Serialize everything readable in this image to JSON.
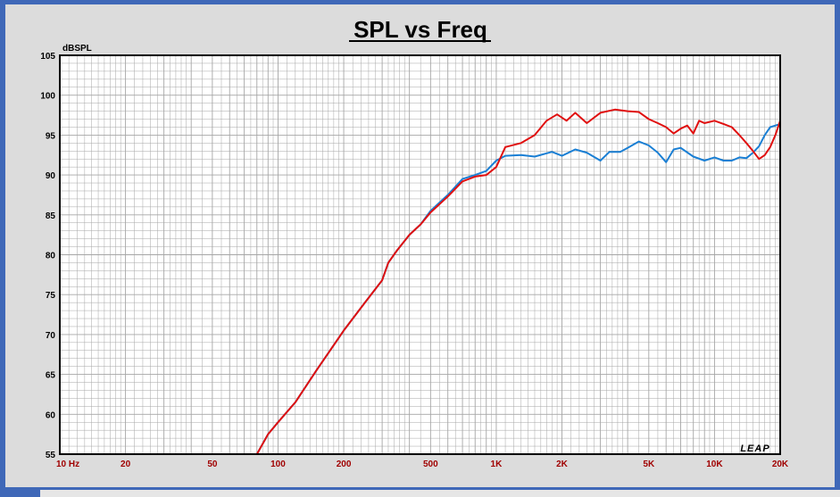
{
  "chart_data": {
    "type": "line",
    "title": "SPL vs Freq",
    "ylabel": "dBSPL",
    "xlabel": "",
    "x_scale": "log",
    "xlim": [
      10,
      20000
    ],
    "ylim": [
      55,
      105
    ],
    "grid": true,
    "brand": "LEAP",
    "x_ticks": [
      {
        "value": 10,
        "label": "10  Hz"
      },
      {
        "value": 20,
        "label": "20"
      },
      {
        "value": 50,
        "label": "50"
      },
      {
        "value": 100,
        "label": "100"
      },
      {
        "value": 200,
        "label": "200"
      },
      {
        "value": 500,
        "label": "500"
      },
      {
        "value": 1000,
        "label": "1K"
      },
      {
        "value": 2000,
        "label": "2K"
      },
      {
        "value": 5000,
        "label": "5K"
      },
      {
        "value": 10000,
        "label": "10K"
      },
      {
        "value": 20000,
        "label": "20K"
      }
    ],
    "y_ticks": [
      55,
      60,
      65,
      70,
      75,
      80,
      85,
      90,
      95,
      100,
      105
    ],
    "colors": {
      "tick_x": "#a00000",
      "tick_y": "#000000",
      "grid": "#a6a6a6",
      "plot_bg": "#ffffff"
    },
    "series": [
      {
        "color": "#1a7fd4",
        "points": [
          [
            10,
            55
          ],
          [
            80,
            55
          ],
          [
            90,
            57.5
          ],
          [
            100,
            59
          ],
          [
            120,
            61.5
          ],
          [
            150,
            65.5
          ],
          [
            200,
            70.5
          ],
          [
            250,
            74
          ],
          [
            300,
            76.8
          ],
          [
            320,
            79
          ],
          [
            350,
            80.5
          ],
          [
            400,
            82.5
          ],
          [
            450,
            83.8
          ],
          [
            500,
            85.5
          ],
          [
            600,
            87.5
          ],
          [
            700,
            89.5
          ],
          [
            800,
            90
          ],
          [
            900,
            90.5
          ],
          [
            1000,
            91.8
          ],
          [
            1100,
            92.4
          ],
          [
            1300,
            92.5
          ],
          [
            1500,
            92.3
          ],
          [
            1800,
            92.9
          ],
          [
            2000,
            92.4
          ],
          [
            2300,
            93.2
          ],
          [
            2600,
            92.8
          ],
          [
            3000,
            91.8
          ],
          [
            3300,
            92.9
          ],
          [
            3700,
            92.9
          ],
          [
            4000,
            93.4
          ],
          [
            4500,
            94.2
          ],
          [
            5000,
            93.7
          ],
          [
            5500,
            92.8
          ],
          [
            6000,
            91.6
          ],
          [
            6500,
            93.2
          ],
          [
            7000,
            93.4
          ],
          [
            8000,
            92.3
          ],
          [
            9000,
            91.8
          ],
          [
            10000,
            92.2
          ],
          [
            11000,
            91.8
          ],
          [
            12000,
            91.8
          ],
          [
            13000,
            92.2
          ],
          [
            14000,
            92.1
          ],
          [
            15000,
            92.8
          ],
          [
            16000,
            93.6
          ],
          [
            17000,
            95.0
          ],
          [
            18000,
            96.0
          ],
          [
            19000,
            96.2
          ],
          [
            20000,
            96.4
          ]
        ]
      },
      {
        "color": "#e01010",
        "points": [
          [
            10,
            55
          ],
          [
            80,
            55
          ],
          [
            90,
            57.5
          ],
          [
            100,
            59
          ],
          [
            120,
            61.5
          ],
          [
            150,
            65.5
          ],
          [
            200,
            70.5
          ],
          [
            250,
            74
          ],
          [
            300,
            76.8
          ],
          [
            320,
            79
          ],
          [
            350,
            80.5
          ],
          [
            400,
            82.5
          ],
          [
            450,
            83.8
          ],
          [
            500,
            85.3
          ],
          [
            600,
            87.3
          ],
          [
            700,
            89.2
          ],
          [
            800,
            89.8
          ],
          [
            900,
            90.0
          ],
          [
            1000,
            91.0
          ],
          [
            1100,
            93.5
          ],
          [
            1300,
            94.0
          ],
          [
            1500,
            95.0
          ],
          [
            1700,
            96.8
          ],
          [
            1900,
            97.6
          ],
          [
            2100,
            96.8
          ],
          [
            2300,
            97.8
          ],
          [
            2600,
            96.5
          ],
          [
            3000,
            97.8
          ],
          [
            3500,
            98.2
          ],
          [
            4000,
            98.0
          ],
          [
            4500,
            97.9
          ],
          [
            5000,
            97.0
          ],
          [
            5500,
            96.5
          ],
          [
            6000,
            96.0
          ],
          [
            6500,
            95.2
          ],
          [
            7000,
            95.8
          ],
          [
            7500,
            96.2
          ],
          [
            8000,
            95.2
          ],
          [
            8500,
            96.8
          ],
          [
            9000,
            96.5
          ],
          [
            10000,
            96.8
          ],
          [
            11000,
            96.4
          ],
          [
            12000,
            96.0
          ],
          [
            13000,
            95.0
          ],
          [
            14000,
            94.0
          ],
          [
            15000,
            93.0
          ],
          [
            16000,
            92.0
          ],
          [
            17000,
            92.5
          ],
          [
            18000,
            93.5
          ],
          [
            19000,
            95.0
          ],
          [
            20000,
            96.8
          ]
        ]
      }
    ]
  }
}
